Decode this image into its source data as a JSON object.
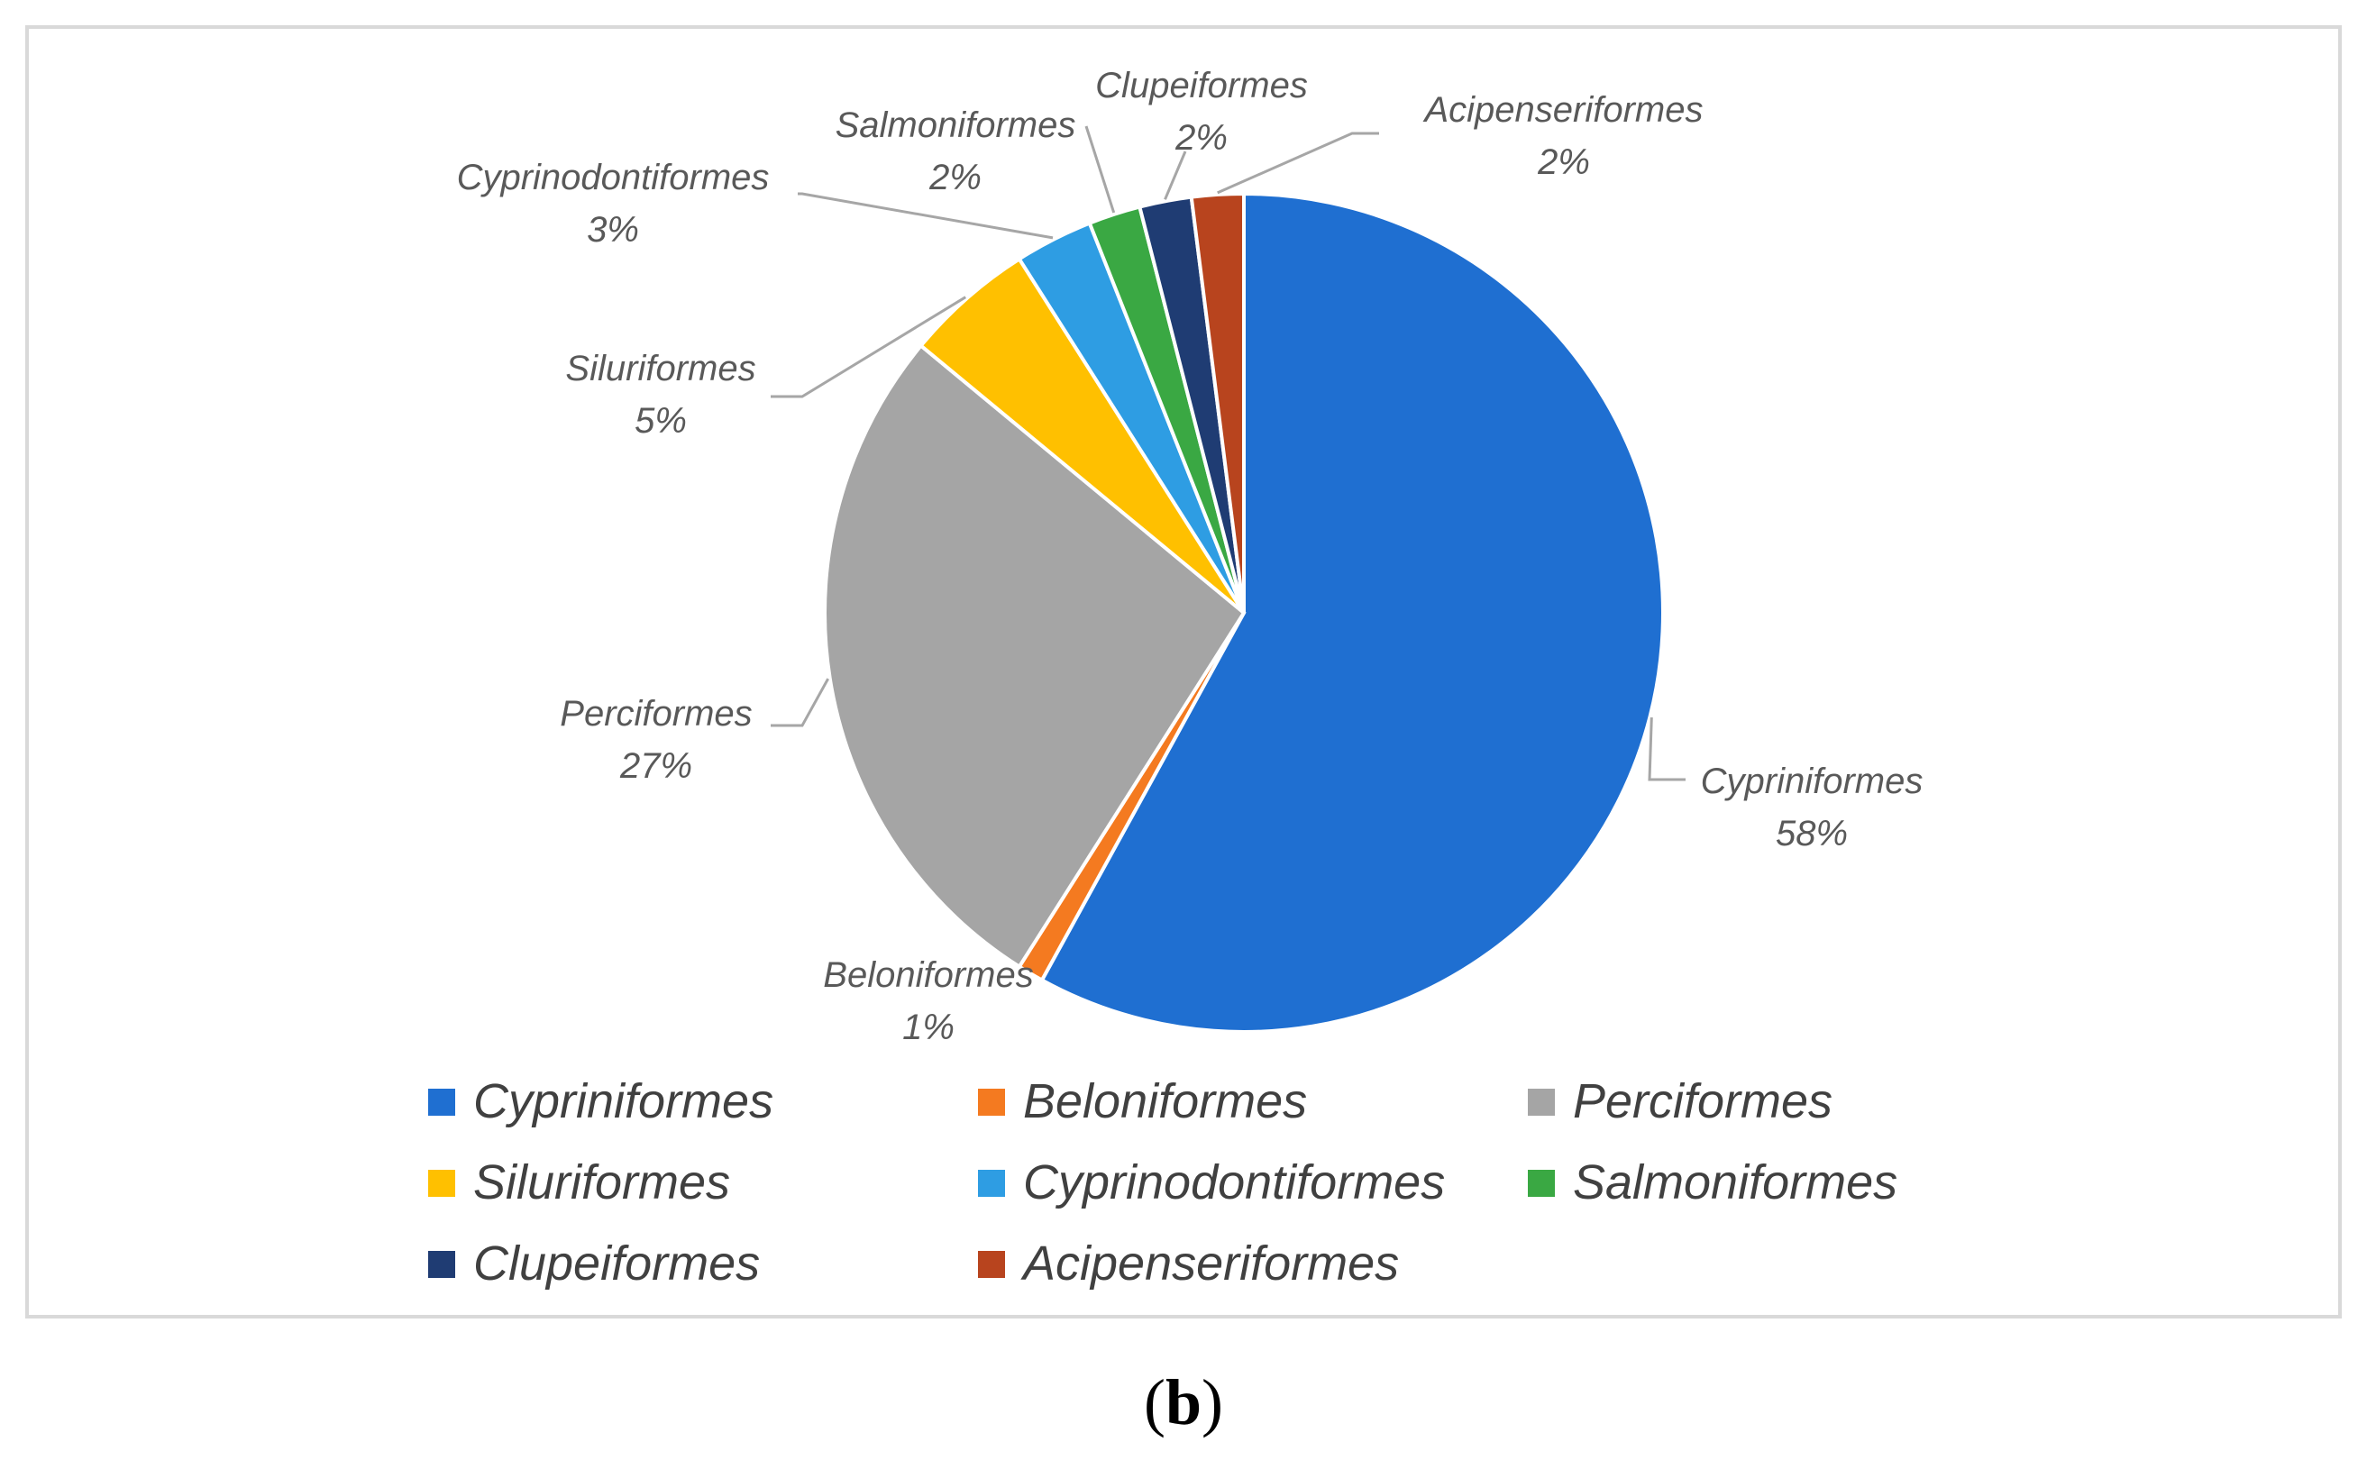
{
  "chart_data": {
    "type": "pie",
    "slices": [
      {
        "label": "Cypriniformes",
        "pct_label": "58%",
        "value": 58,
        "color": "#1f6fd1"
      },
      {
        "label": "Beloniformes",
        "pct_label": "1%",
        "value": 1,
        "color": "#f47a20"
      },
      {
        "label": "Perciformes",
        "pct_label": "27%",
        "value": 27,
        "color": "#a5a5a5"
      },
      {
        "label": "Siluriformes",
        "pct_label": "5%",
        "value": 5,
        "color": "#ffc000"
      },
      {
        "label": "Cyprinodontiformes",
        "pct_label": "3%",
        "value": 3,
        "color": "#2e9de3"
      },
      {
        "label": "Salmoniformes",
        "pct_label": "2%",
        "value": 2,
        "color": "#3aa843"
      },
      {
        "label": "Clupeiformes",
        "pct_label": "2%",
        "value": 2,
        "color": "#1f3c73"
      },
      {
        "label": "Acipenseriformes",
        "pct_label": "2%",
        "value": 2,
        "color": "#b8441e"
      }
    ],
    "legend": "bottom"
  },
  "caption": {
    "open": "(",
    "letter": "b",
    "close": ")"
  }
}
